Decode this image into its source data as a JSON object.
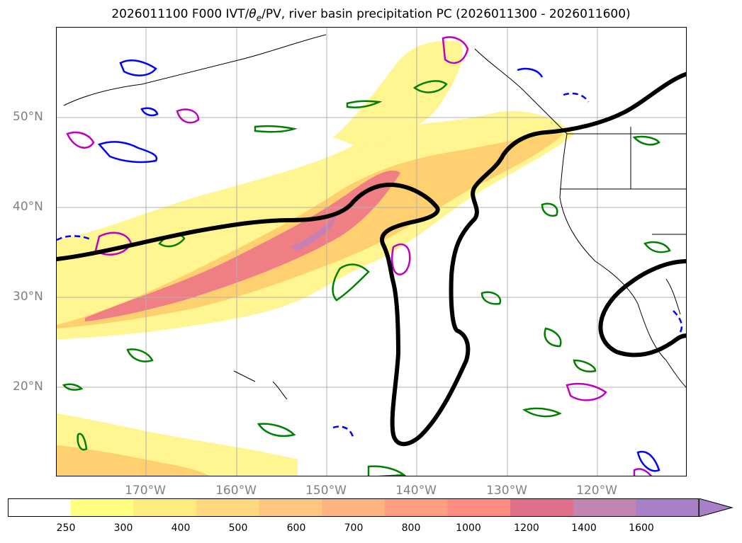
{
  "title": "2026011100 F000 IVT/θe/PV, river basin precipitation PC (2026011300 - 2026011600)",
  "title_parts": {
    "pre": "2026011100 F000 IVT/",
    "theta": "θ",
    "sub": "e",
    "post": "/PV, river basin precipitation PC (2026011300 - 2026011600)"
  },
  "lat_labels": [
    "50°N",
    "40°N",
    "30°N",
    "20°N"
  ],
  "lon_labels": [
    "170°W",
    "160°W",
    "150°W",
    "140°W",
    "130°W",
    "120°W"
  ],
  "colorbar": {
    "ticks": [
      "250",
      "300",
      "400",
      "500",
      "600",
      "700",
      "800",
      "1000",
      "1200",
      "1400",
      "1600"
    ],
    "colors": [
      "#ffffff",
      "#ffff80",
      "#ffec7f",
      "#ffd980",
      "#ffc680",
      "#ffb380",
      "#ff9f80",
      "#ff8c80",
      "#e0708a",
      "#c085b0",
      "#a880c8"
    ]
  },
  "contour_colors": {
    "ivt_outer": "#fff591",
    "ivt_mid": "#ffd070",
    "ivt_core": "#f07f85",
    "ivt_max": "#c97fb0",
    "green_contours": "#008000",
    "blue_contours": "#0000ff",
    "magenta_contours": "#c000c0",
    "pv_contour": "#000000"
  }
}
